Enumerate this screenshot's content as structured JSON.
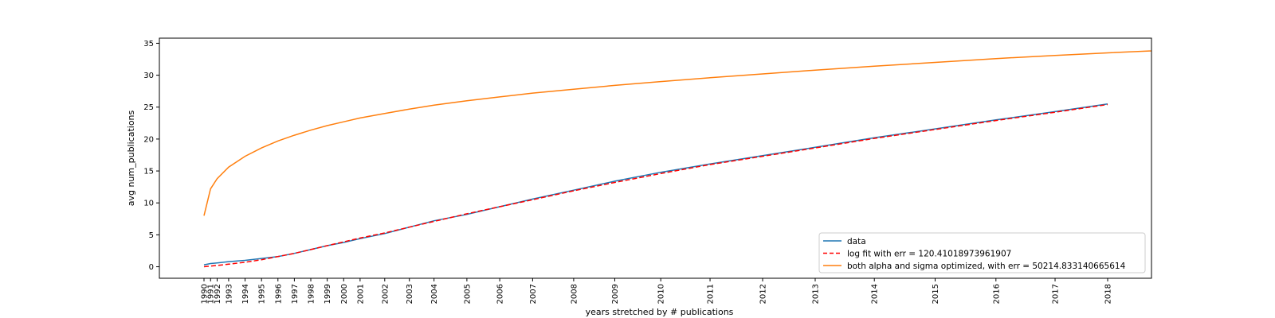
{
  "chart_data": {
    "type": "line",
    "title": "",
    "xlabel": "years stretched by # publications",
    "ylabel": "avg num_publications",
    "xlim": [
      -2.4,
      56.4
    ],
    "ylim": [
      -1.8,
      35.8
    ],
    "x_ticks": [
      {
        "x": 0,
        "label": "1990"
      },
      {
        "x": 0.4,
        "label": "1991"
      },
      {
        "x": 0.8,
        "label": "1992"
      },
      {
        "x": 1.5,
        "label": "1993"
      },
      {
        "x": 2.5,
        "label": "1994"
      },
      {
        "x": 3.5,
        "label": "1995"
      },
      {
        "x": 4.5,
        "label": "1996"
      },
      {
        "x": 5.5,
        "label": "1997"
      },
      {
        "x": 6.5,
        "label": "1998"
      },
      {
        "x": 7.5,
        "label": "1999"
      },
      {
        "x": 8.5,
        "label": "2000"
      },
      {
        "x": 9.5,
        "label": "2001"
      },
      {
        "x": 11,
        "label": "2002"
      },
      {
        "x": 12.5,
        "label": "2003"
      },
      {
        "x": 14,
        "label": "2004"
      },
      {
        "x": 16,
        "label": "2005"
      },
      {
        "x": 18,
        "label": "2006"
      },
      {
        "x": 20,
        "label": "2007"
      },
      {
        "x": 22.5,
        "label": "2008"
      },
      {
        "x": 25,
        "label": "2009"
      },
      {
        "x": 27.8,
        "label": "2010"
      },
      {
        "x": 30.8,
        "label": "2011"
      },
      {
        "x": 34,
        "label": "2012"
      },
      {
        "x": 37.2,
        "label": "2013"
      },
      {
        "x": 40.8,
        "label": "2014"
      },
      {
        "x": 44.5,
        "label": "2015"
      },
      {
        "x": 48.2,
        "label": "2016"
      },
      {
        "x": 51.8,
        "label": "2017"
      },
      {
        "x": 55,
        "label": "2018"
      }
    ],
    "y_ticks": [
      0,
      5,
      10,
      15,
      20,
      25,
      30,
      35
    ],
    "legend_position": "bottom-right",
    "series": [
      {
        "name": "data",
        "color": "#1f77b4",
        "style": "solid",
        "points": [
          [
            0,
            0.3
          ],
          [
            0.4,
            0.5
          ],
          [
            0.8,
            0.6
          ],
          [
            1.5,
            0.8
          ],
          [
            2.5,
            1.0
          ],
          [
            3.5,
            1.3
          ],
          [
            4.5,
            1.6
          ],
          [
            5.5,
            2.1
          ],
          [
            6.5,
            2.7
          ],
          [
            7.5,
            3.3
          ],
          [
            8.5,
            3.8
          ],
          [
            9.5,
            4.4
          ],
          [
            11,
            5.2
          ],
          [
            12.5,
            6.2
          ],
          [
            14,
            7.2
          ],
          [
            16,
            8.2
          ],
          [
            18,
            9.4
          ],
          [
            20,
            10.6
          ],
          [
            22.5,
            12.0
          ],
          [
            25,
            13.4
          ],
          [
            27.8,
            14.8
          ],
          [
            30.8,
            16.1
          ],
          [
            34,
            17.4
          ],
          [
            37.2,
            18.7
          ],
          [
            40.8,
            20.2
          ],
          [
            44.5,
            21.6
          ],
          [
            48.2,
            23.0
          ],
          [
            51.8,
            24.3
          ],
          [
            55,
            25.5
          ]
        ]
      },
      {
        "name": "log fit with err = 120.41018973961907",
        "color": "#ff0000",
        "style": "dashed",
        "points": [
          [
            0,
            0.0
          ],
          [
            0.4,
            0.1
          ],
          [
            0.8,
            0.2
          ],
          [
            1.5,
            0.4
          ],
          [
            2.5,
            0.7
          ],
          [
            3.5,
            1.1
          ],
          [
            4.5,
            1.6
          ],
          [
            5.5,
            2.1
          ],
          [
            6.5,
            2.7
          ],
          [
            7.5,
            3.3
          ],
          [
            8.5,
            3.9
          ],
          [
            9.5,
            4.5
          ],
          [
            11,
            5.3
          ],
          [
            12.5,
            6.2
          ],
          [
            14,
            7.1
          ],
          [
            16,
            8.3
          ],
          [
            18,
            9.4
          ],
          [
            20,
            10.5
          ],
          [
            22.5,
            11.9
          ],
          [
            25,
            13.2
          ],
          [
            27.8,
            14.6
          ],
          [
            30.8,
            16.0
          ],
          [
            34,
            17.3
          ],
          [
            37.2,
            18.6
          ],
          [
            40.8,
            20.1
          ],
          [
            44.5,
            21.5
          ],
          [
            48.2,
            22.9
          ],
          [
            51.8,
            24.2
          ],
          [
            55,
            25.4
          ]
        ]
      },
      {
        "name": "both alpha and sigma optimized, with err = 50214.833140665614",
        "color": "#ff7f0e",
        "style": "solid",
        "points": [
          [
            0,
            8.0
          ],
          [
            0.4,
            12.2
          ],
          [
            0.8,
            13.8
          ],
          [
            1.5,
            15.6
          ],
          [
            2.5,
            17.3
          ],
          [
            3.5,
            18.6
          ],
          [
            4.5,
            19.7
          ],
          [
            5.5,
            20.6
          ],
          [
            6.5,
            21.4
          ],
          [
            7.5,
            22.1
          ],
          [
            8.5,
            22.7
          ],
          [
            9.5,
            23.3
          ],
          [
            11,
            24.0
          ],
          [
            12.5,
            24.7
          ],
          [
            14,
            25.3
          ],
          [
            16,
            26.0
          ],
          [
            18,
            26.6
          ],
          [
            20,
            27.2
          ],
          [
            22.5,
            27.8
          ],
          [
            25,
            28.4
          ],
          [
            27.8,
            29.0
          ],
          [
            30.8,
            29.6
          ],
          [
            34,
            30.2
          ],
          [
            37.2,
            30.8
          ],
          [
            40.8,
            31.4
          ],
          [
            44.5,
            32.0
          ],
          [
            48.2,
            32.6
          ],
          [
            51.8,
            33.1
          ],
          [
            55,
            33.5
          ],
          [
            60,
            34.1
          ]
        ]
      }
    ]
  }
}
